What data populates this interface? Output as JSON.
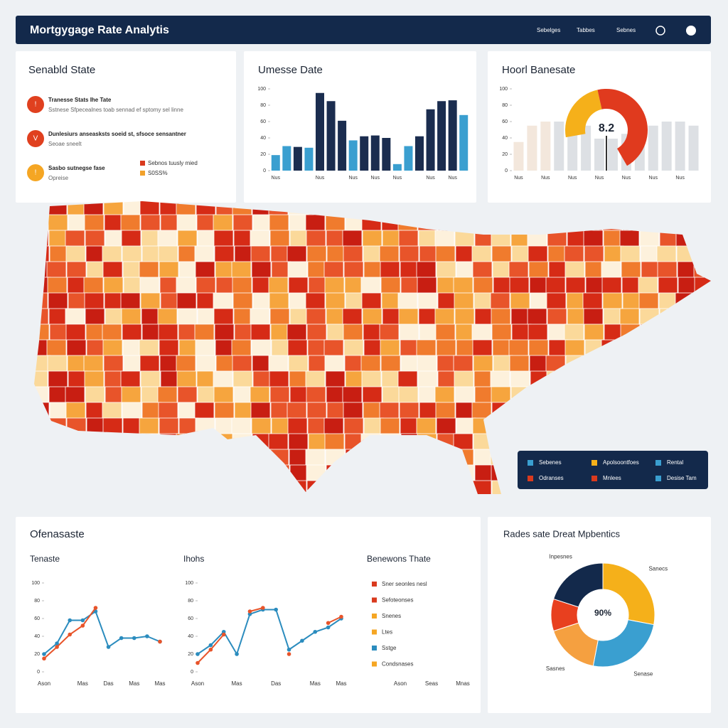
{
  "header": {
    "title": "Mortgygage Rate Analytis",
    "nav": [
      "Sebelges",
      "Tabbes",
      "Sebnes"
    ]
  },
  "state_panel": {
    "title": "Senabld State",
    "items": [
      {
        "icon": "!",
        "color": "#e0401f",
        "title": "Tranesse Stats Ihe Tate",
        "text": "Sstnese Sfpecealnes toab sennad ef sptomy sel linne"
      },
      {
        "icon": "V",
        "color": "#e0401f",
        "title": "Dunlesiurs anseasksts soeid st, sfsoce sensantner",
        "text": "Seoae sneelt"
      },
      {
        "icon": "!",
        "color": "#f5a623",
        "title": "Sasbo sutnegse fase",
        "text": "Opreise"
      }
    ],
    "tags": [
      {
        "label": "Sebnos tuusly mied",
        "color": "#d93a1e"
      },
      {
        "label": "S0SS%",
        "color": "#f2a12b"
      }
    ]
  },
  "bar_chart": {
    "type": "bar",
    "title": "Umesse Date",
    "values": [
      19,
      30,
      29,
      28,
      95,
      85,
      61,
      37,
      42,
      43,
      40,
      8,
      30,
      42,
      75,
      85,
      86,
      68
    ],
    "colors": [
      "#3a9fd0",
      "#3a9fd0",
      "#1b2d4f",
      "#3a9fd0",
      "#1b2d4f",
      "#1b2d4f",
      "#1b2d4f",
      "#3a9fd0",
      "#1b2d4f",
      "#1b2d4f",
      "#1b2d4f",
      "#3a9fd0",
      "#3a9fd0",
      "#1b2d4f",
      "#1b2d4f",
      "#1b2d4f",
      "#1b2d4f",
      "#3a9fd0"
    ],
    "categories": [
      "Nus",
      null,
      null,
      null,
      "Nus",
      null,
      null,
      "Nus",
      null,
      "Nus",
      null,
      "Nus",
      null,
      null,
      "Nus",
      null,
      "Nus",
      null
    ],
    "ylim": [
      0,
      100
    ],
    "yticks": [
      0,
      20,
      40,
      60,
      80,
      100
    ]
  },
  "gauge_panel": {
    "title": "Hoorl Banesate",
    "value_label": "8.2",
    "segments": [
      {
        "color": "#f5b01a",
        "value": 35
      },
      {
        "color": "#e03a1e",
        "value": 65
      }
    ],
    "bars": [
      35,
      55,
      60,
      60,
      55,
      55,
      50,
      40,
      45,
      50,
      55,
      60,
      60,
      55
    ],
    "categories": [
      "Nus",
      null,
      "Nus",
      null,
      "Nus",
      null,
      "Nus",
      null,
      "Nus",
      null,
      "Nus",
      null,
      "Nus",
      null
    ],
    "ylim": [
      0,
      100
    ],
    "yticks": [
      0,
      20,
      40,
      60,
      80,
      100
    ]
  },
  "map_legend": [
    {
      "name": "Sebenes",
      "color": "#3a9fd0"
    },
    {
      "name": "Apolsoontfoes",
      "color": "#f5b01a"
    },
    {
      "name": "Rental",
      "color": "#3a9fd0"
    },
    {
      "name": "Odranses",
      "color": "#d93a1e"
    },
    {
      "name": "Mnlees",
      "color": "#d93a1e"
    },
    {
      "name": "Desise Tam",
      "color": "#3a9fd0"
    }
  ],
  "trend_panel": {
    "title": "Ofenasaste",
    "charts": [
      {
        "type": "line",
        "title": "Tenaste",
        "categories": [
          "Ason",
          null,
          null,
          "Mas",
          null,
          "Das",
          null,
          "Mas",
          null,
          "Mas"
        ],
        "series": [
          {
            "color": "#2b8cbe",
            "values": [
              20,
              32,
              58,
              58,
              68,
              28,
              38,
              38,
              40,
              34
            ]
          },
          {
            "color": "#e8542a",
            "values": [
              15,
              28,
              42,
              52,
              72,
              null,
              null,
              null,
              null,
              34
            ]
          }
        ],
        "ylim": [
          0,
          100
        ],
        "yticks": [
          0,
          20,
          40,
          60,
          80,
          100
        ]
      },
      {
        "type": "line",
        "title": "Ihohs",
        "categories": [
          "Ason",
          null,
          null,
          "Mas",
          null,
          null,
          "Das",
          null,
          null,
          "Mas",
          null,
          "Mas"
        ],
        "series": [
          {
            "color": "#2b8cbe",
            "values": [
              20,
              30,
              45,
              20,
              65,
              70,
              70,
              25,
              35,
              45,
              50,
              60
            ]
          },
          {
            "color": "#e8542a",
            "values": [
              10,
              25,
              42,
              null,
              68,
              72,
              null,
              20,
              null,
              null,
              55,
              62
            ]
          }
        ],
        "ylim": [
          0,
          100
        ],
        "yticks": [
          0,
          20,
          40,
          60,
          80,
          100
        ]
      }
    ],
    "legend_title": "Benewons Thate",
    "legend": [
      {
        "name": "Sner seonles nesl",
        "color": "#d93a1e"
      },
      {
        "name": "Sefoteonses",
        "color": "#d93a1e"
      },
      {
        "name": "Snenes",
        "color": "#f5a623"
      },
      {
        "name": "Ltes",
        "color": "#f5a623"
      },
      {
        "name": "Sstge",
        "color": "#2b8cbe"
      },
      {
        "name": "Condsnases",
        "color": "#f5a623"
      }
    ],
    "categories": [
      "Ason",
      "Seas",
      "Mnas"
    ]
  },
  "donut": {
    "type": "pie",
    "title": "Rades sate Dreat Mpbentics",
    "center_label": "90%",
    "values": [
      28,
      25,
      17,
      10,
      20
    ],
    "colors": [
      "#f5b01a",
      "#3a9fd0",
      "#f5a040",
      "#e8401f",
      "#13294b"
    ],
    "labels": [
      "Sanecs",
      "Senase",
      "Sasnes",
      null,
      "Inpesnes"
    ]
  }
}
